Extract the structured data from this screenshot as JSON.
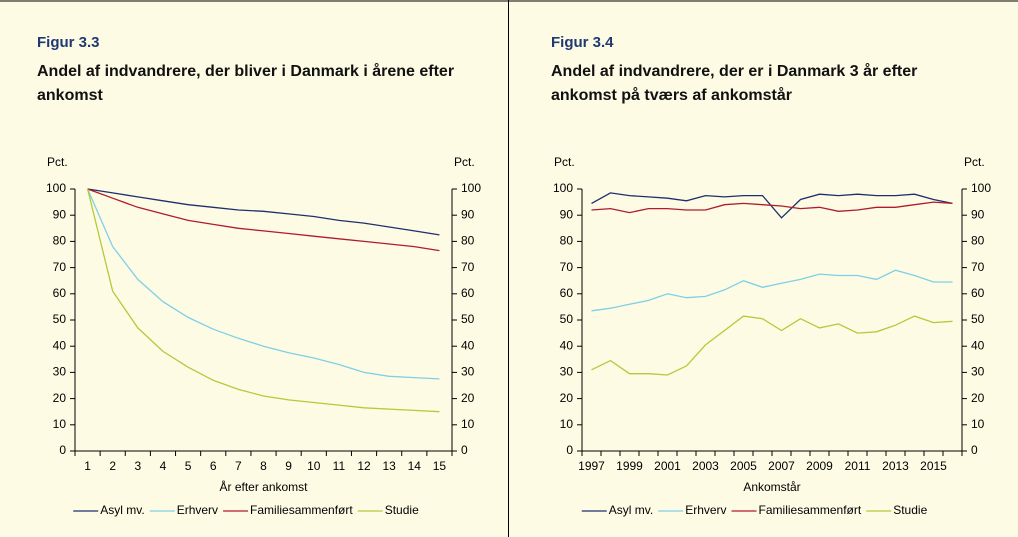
{
  "chart_data": [
    {
      "type": "line",
      "figure_label": "Figur 3.3",
      "title": "Andel af indvandrere, der bliver i Danmark i årene efter ankomst",
      "ylabel": "Pct.",
      "y2label": "Pct.",
      "xlabel": "År efter ankomst",
      "categories": [
        1,
        2,
        3,
        4,
        5,
        6,
        7,
        8,
        9,
        10,
        11,
        12,
        13,
        14,
        15
      ],
      "ylim": [
        0,
        100
      ],
      "yticks": [
        0,
        10,
        20,
        30,
        40,
        50,
        60,
        70,
        80,
        90,
        100
      ],
      "y2lim": [
        0,
        100
      ],
      "y2ticks": [
        0,
        10,
        20,
        30,
        40,
        50,
        60,
        70,
        80,
        90,
        100
      ],
      "series": [
        {
          "name": "Asyl mv.",
          "color": "#1f2f6e",
          "values": [
            100,
            98.5,
            97,
            95.5,
            94,
            93,
            92,
            91.5,
            90.5,
            89.5,
            88,
            87,
            85.5,
            84,
            82.5
          ]
        },
        {
          "name": "Erhverv",
          "color": "#7fcfe6",
          "values": [
            100,
            78,
            65.5,
            57,
            51,
            46.5,
            43,
            40,
            37.5,
            35.5,
            33,
            30,
            28.5,
            28,
            27.5
          ]
        },
        {
          "name": "Familiesammenført",
          "color": "#b01c2e",
          "values": [
            100,
            96.5,
            93,
            90.5,
            88,
            86.5,
            85,
            84,
            83,
            82,
            81,
            80,
            79,
            78,
            76.5
          ]
        },
        {
          "name": "Studie",
          "color": "#b5c93a",
          "values": [
            100,
            61,
            47,
            38,
            32,
            27,
            23.5,
            21,
            19.5,
            18.5,
            17.5,
            16.5,
            16,
            15.5,
            15
          ]
        }
      ]
    },
    {
      "type": "line",
      "figure_label": "Figur 3.4",
      "title": "Andel af indvandrere, der er i Danmark 3 år efter ankomst på tværs af ankomstår",
      "ylabel": "Pct.",
      "y2label": "Pct.",
      "xlabel": "Ankomstår",
      "categories": [
        1997,
        null,
        1999,
        null,
        2001,
        null,
        2003,
        null,
        2005,
        null,
        2007,
        null,
        2009,
        null,
        2011,
        null,
        2013,
        null,
        2015,
        null
      ],
      "ylim": [
        0,
        100
      ],
      "yticks": [
        0,
        10,
        20,
        30,
        40,
        50,
        60,
        70,
        80,
        90,
        100
      ],
      "y2lim": [
        0,
        100
      ],
      "y2ticks": [
        0,
        10,
        20,
        30,
        40,
        50,
        60,
        70,
        80,
        90,
        100
      ],
      "series": [
        {
          "name": "Asyl mv.",
          "color": "#1f2f6e",
          "values": [
            94.5,
            98.5,
            97.5,
            97,
            96.5,
            95.5,
            97.5,
            97,
            97.5,
            97.5,
            89,
            96,
            98,
            97.5,
            98,
            97.5,
            97.5,
            98,
            96,
            94.5
          ]
        },
        {
          "name": "Erhverv",
          "color": "#7fcfe6",
          "values": [
            53.5,
            54.5,
            56,
            57.5,
            60,
            58.5,
            59,
            61.5,
            65,
            62.5,
            64,
            65.5,
            67.5,
            67,
            67,
            65.5,
            69,
            67,
            64.5,
            64.5
          ]
        },
        {
          "name": "Familiesammenført",
          "color": "#b01c2e",
          "values": [
            92,
            92.5,
            91,
            92.5,
            92.5,
            92,
            92,
            94,
            94.5,
            94,
            93.5,
            92.5,
            93,
            91.5,
            92,
            93,
            93,
            94,
            95,
            94.5
          ]
        },
        {
          "name": "Studie",
          "color": "#b5c93a",
          "values": [
            31,
            34.5,
            29.5,
            29.5,
            29,
            32.5,
            40.5,
            46,
            51.5,
            50.5,
            46,
            50.5,
            47,
            48.5,
            45,
            45.5,
            48,
            51.5,
            49,
            49.5
          ]
        }
      ]
    }
  ]
}
